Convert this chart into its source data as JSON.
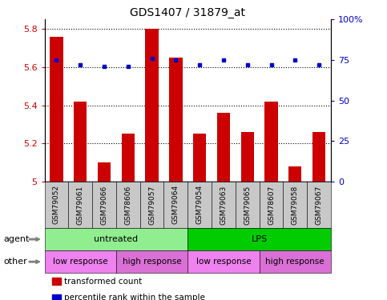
{
  "title": "GDS1407 / 31879_at",
  "samples": [
    "GSM79052",
    "GSM79061",
    "GSM79066",
    "GSM78606",
    "GSM79057",
    "GSM79064",
    "GSM79054",
    "GSM79063",
    "GSM79065",
    "GSM78607",
    "GSM79058",
    "GSM79067"
  ],
  "bar_values": [
    5.76,
    5.42,
    5.1,
    5.25,
    5.8,
    5.65,
    5.25,
    5.36,
    5.26,
    5.42,
    5.08,
    5.26
  ],
  "dot_values_pct": [
    75,
    72,
    71,
    71,
    76,
    75,
    72,
    75,
    72,
    72,
    75,
    72
  ],
  "ylim_left": [
    5.0,
    5.85
  ],
  "ylim_right": [
    0,
    100
  ],
  "yticks_left": [
    5.0,
    5.2,
    5.4,
    5.6,
    5.8
  ],
  "ytick_labels_left": [
    "5",
    "5.2",
    "5.4",
    "5.6",
    "5.8"
  ],
  "yticks_right": [
    0,
    25,
    50,
    75,
    100
  ],
  "ytick_labels_right": [
    "0",
    "25",
    "50",
    "75",
    "100%"
  ],
  "bar_color": "#cc0000",
  "dot_color": "#0000cc",
  "bar_width": 0.55,
  "agent_groups": [
    {
      "label": "untreated",
      "start": 0,
      "end": 6,
      "color": "#90ee90"
    },
    {
      "label": "LPS",
      "start": 6,
      "end": 12,
      "color": "#00cc00"
    }
  ],
  "other_groups": [
    {
      "label": "low response",
      "start": 0,
      "end": 3,
      "color": "#ee82ee"
    },
    {
      "label": "high response",
      "start": 3,
      "end": 6,
      "color": "#da70d6"
    },
    {
      "label": "low response",
      "start": 6,
      "end": 9,
      "color": "#ee82ee"
    },
    {
      "label": "high response",
      "start": 9,
      "end": 12,
      "color": "#da70d6"
    }
  ],
  "agent_label": "agent",
  "other_label": "other",
  "legend_labels": [
    "transformed count",
    "percentile rank within the sample"
  ],
  "legend_colors": [
    "#cc0000",
    "#0000cc"
  ],
  "grid_linestyle": "dotted"
}
